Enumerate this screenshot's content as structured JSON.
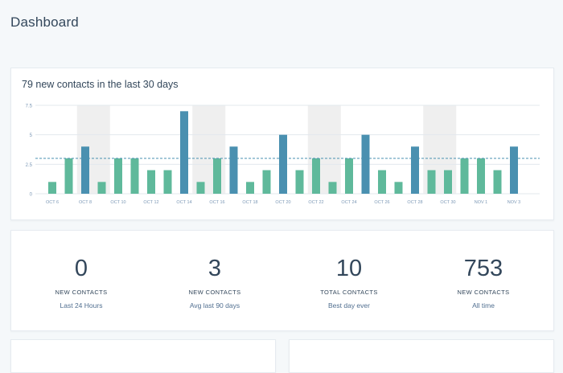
{
  "page": {
    "title": "Dashboard"
  },
  "contacts_chart": {
    "title": "79 new contacts in the last 30 days"
  },
  "colors": {
    "green": "#5fb99b",
    "blue": "#4a90b0",
    "weekend_band": "#efefef",
    "average_line": "#4a90b0"
  },
  "chart_data": {
    "type": "bar",
    "title": "79 new contacts in the last 30 days",
    "ylim": [
      0,
      7.5
    ],
    "yticks": [
      "0",
      "2.5",
      "5",
      "7.5"
    ],
    "xtick_labels": [
      "OCT 6",
      "OCT 8",
      "OCT 10",
      "OCT 12",
      "OCT 14",
      "OCT 16",
      "OCT 18",
      "OCT 20",
      "OCT 22",
      "OCT 24",
      "OCT 26",
      "OCT 28",
      "OCT 30",
      "NOV 1",
      "NOV 3"
    ],
    "average": 3,
    "grid": true,
    "values": [
      1,
      3,
      4,
      1,
      3,
      3,
      2,
      2,
      7,
      1,
      3,
      4,
      1,
      2,
      5,
      2,
      3,
      1,
      3,
      5,
      2,
      1,
      4,
      2,
      2,
      3,
      3,
      2,
      4
    ],
    "highlight": [
      false,
      false,
      true,
      false,
      false,
      false,
      false,
      false,
      true,
      false,
      false,
      true,
      false,
      false,
      true,
      false,
      false,
      false,
      false,
      true,
      false,
      false,
      true,
      false,
      false,
      false,
      false,
      false,
      true
    ],
    "shaded_ranges": [
      [
        2,
        3
      ],
      [
        9,
        10
      ],
      [
        16,
        17
      ],
      [
        23,
        24
      ]
    ]
  },
  "stats": [
    {
      "value": "0",
      "label": "NEW CONTACTS",
      "sub": "Last 24 Hours"
    },
    {
      "value": "3",
      "label": "NEW CONTACTS",
      "sub": "Avg last 90 days"
    },
    {
      "value": "10",
      "label": "TOTAL CONTACTS",
      "sub": "Best day ever"
    },
    {
      "value": "753",
      "label": "NEW CONTACTS",
      "sub": "All time"
    }
  ]
}
